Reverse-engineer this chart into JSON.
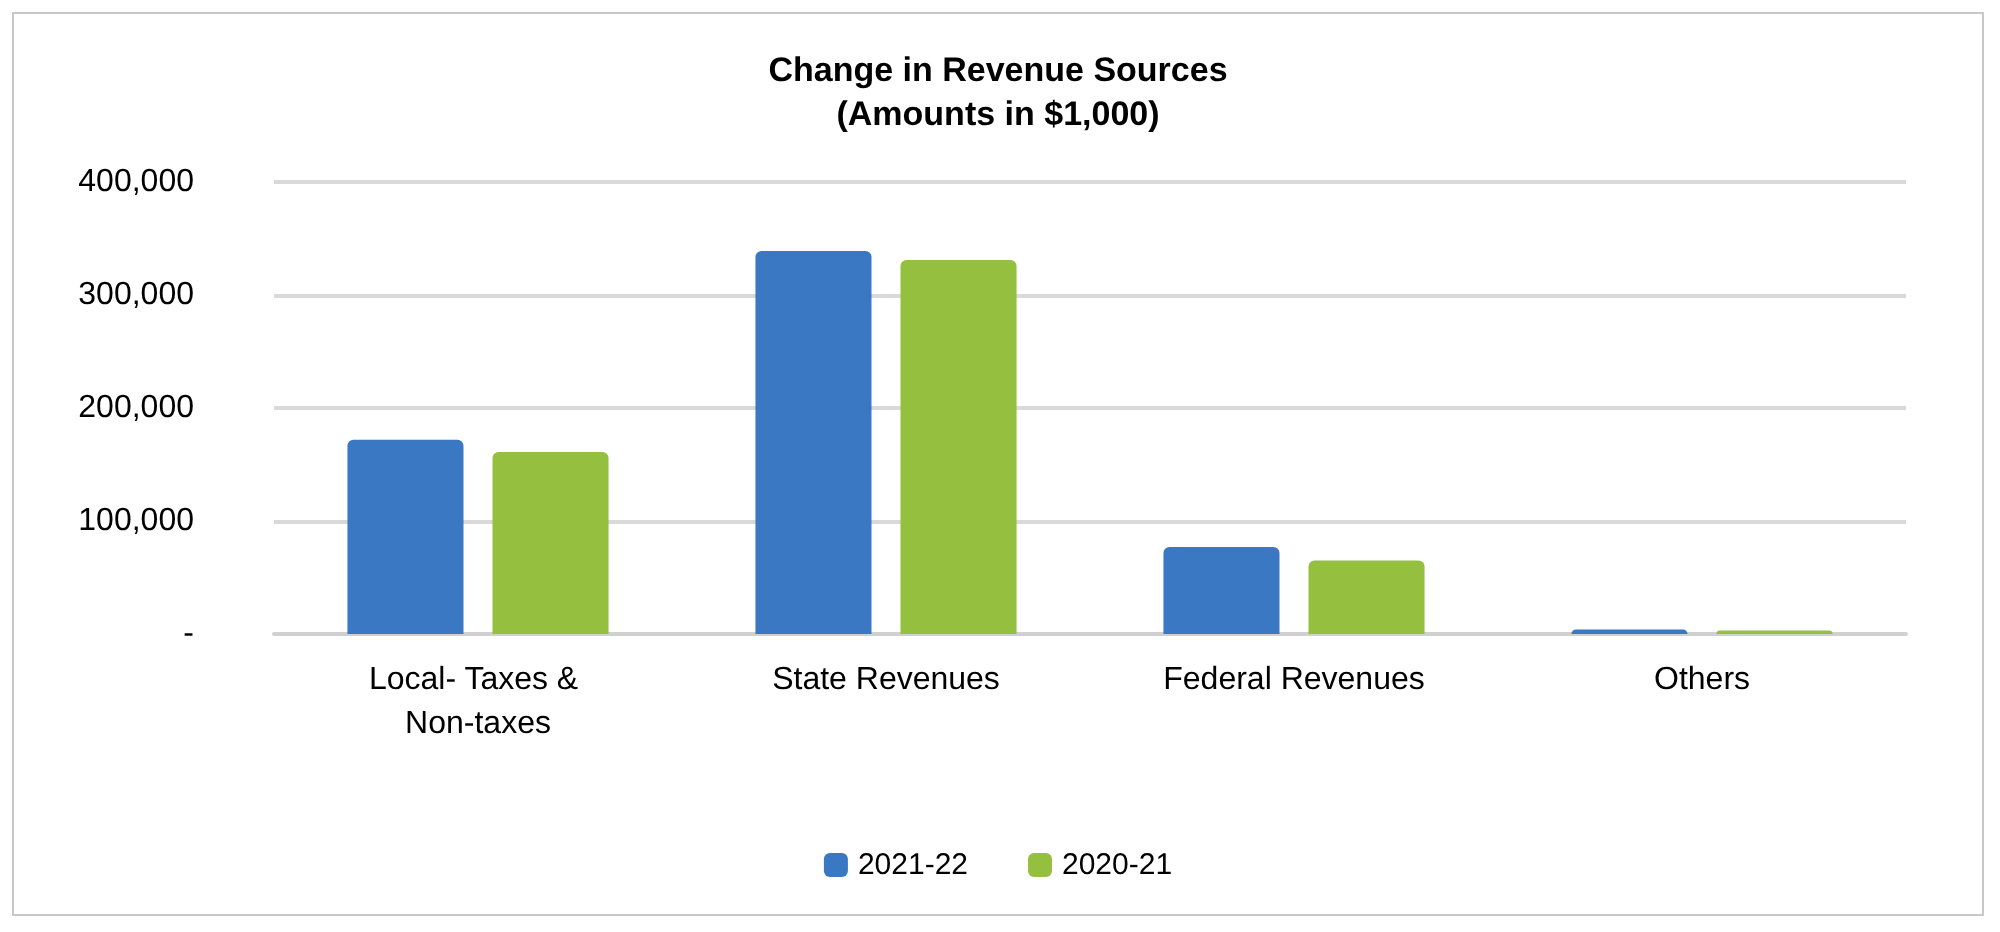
{
  "chart_data": {
    "type": "bar",
    "title": "Change in Revenue Sources\n(Amounts in $1,000)",
    "categories": [
      "Local- Taxes & Non-taxes",
      "State Revenues",
      "Federal Revenues",
      "Others"
    ],
    "series": [
      {
        "name": "2021-22",
        "color": "#3a78c4",
        "values": [
          172000,
          339000,
          77000,
          4000
        ]
      },
      {
        "name": "2020-21",
        "color": "#95c03f",
        "values": [
          161000,
          331000,
          65000,
          3000
        ]
      }
    ],
    "ylim": [
      0,
      400000
    ],
    "yticks": [
      {
        "value": 0,
        "label": "-"
      },
      {
        "value": 100000,
        "label": "100,000"
      },
      {
        "value": 200000,
        "label": "200,000"
      },
      {
        "value": 300000,
        "label": "300,000"
      },
      {
        "value": 400000,
        "label": "400,000"
      }
    ],
    "grid": "y",
    "legend": "bottom"
  }
}
